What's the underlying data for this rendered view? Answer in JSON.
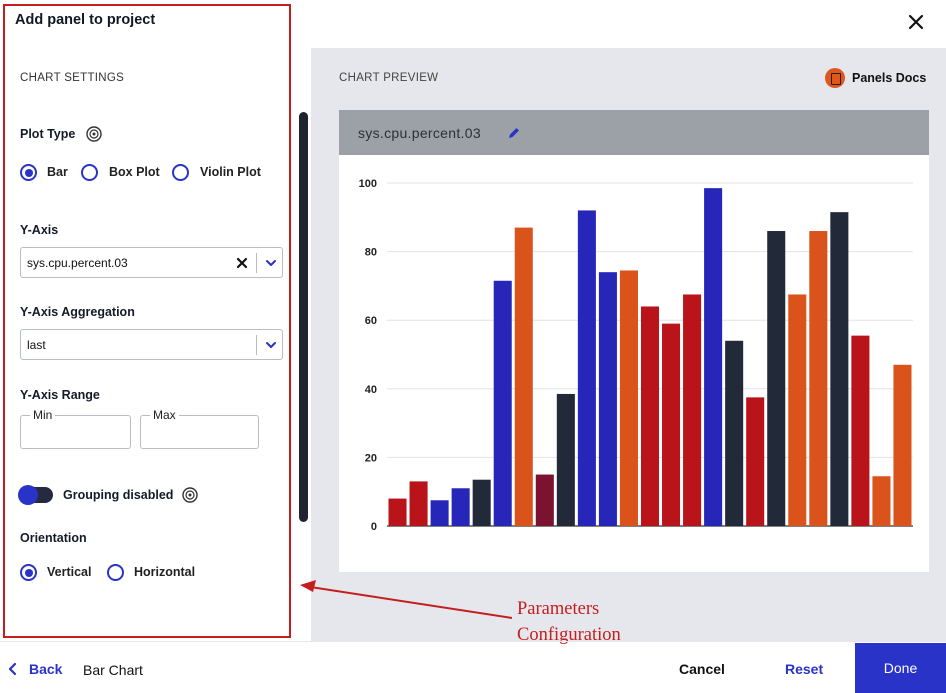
{
  "dialog": {
    "title": "Add panel to project",
    "close_icon": "close-icon"
  },
  "settings": {
    "section_title": "CHART SETTINGS",
    "plot_type": {
      "label": "Plot Type",
      "options": [
        "Bar",
        "Box Plot",
        "Violin Plot"
      ],
      "selected": "Bar"
    },
    "y_axis": {
      "label": "Y-Axis",
      "value": "sys.cpu.percent.03"
    },
    "y_axis_aggregation": {
      "label": "Y-Axis Aggregation",
      "value": "last"
    },
    "y_axis_range": {
      "label": "Y-Axis Range",
      "min_label": "Min",
      "max_label": "Max",
      "min_value": "",
      "max_value": ""
    },
    "grouping": {
      "label": "Grouping disabled",
      "enabled": false
    },
    "orientation": {
      "label": "Orientation",
      "options": [
        "Vertical",
        "Horizontal"
      ],
      "selected": "Vertical"
    }
  },
  "preview": {
    "section_title": "CHART PREVIEW",
    "docs_label": "Panels Docs",
    "chart_title": "sys.cpu.percent.03"
  },
  "chart_data": {
    "type": "bar",
    "title": "sys.cpu.percent.03",
    "xlabel": "",
    "ylabel": "",
    "ylim": [
      0,
      100
    ],
    "yticks": [
      0,
      20,
      40,
      60,
      80,
      100
    ],
    "grid": true,
    "values": [
      8,
      13,
      7.5,
      11,
      13.5,
      71.5,
      87,
      15,
      38.5,
      92,
      74,
      74.5,
      64,
      59,
      67.5,
      98.5,
      54,
      37.5,
      86,
      67.5,
      86,
      91.5,
      55.5,
      14.5,
      47
    ],
    "colors": [
      "#b8141a",
      "#b8141a",
      "#2626b8",
      "#2626b8",
      "#222a3a",
      "#2626b8",
      "#d9531a",
      "#7a1230",
      "#222a3a",
      "#2626b8",
      "#2626b8",
      "#d9531a",
      "#b8141a",
      "#b8141a",
      "#b8141a",
      "#2626b8",
      "#222a3a",
      "#b8141a",
      "#222a3a",
      "#d9531a",
      "#d9531a",
      "#222a3a",
      "#b8141a",
      "#d9531a",
      "#d9531a"
    ]
  },
  "annotation": {
    "text": "Parameters\nConfiguration",
    "color": "#c41e1e"
  },
  "footer": {
    "back_label": "Back",
    "breadcrumb": "Bar Chart",
    "cancel_label": "Cancel",
    "reset_label": "Reset",
    "done_label": "Done"
  },
  "colors": {
    "accent": "#2a33c7",
    "annotation": "#c41e1e",
    "preview_bg": "#e6e7ec"
  }
}
